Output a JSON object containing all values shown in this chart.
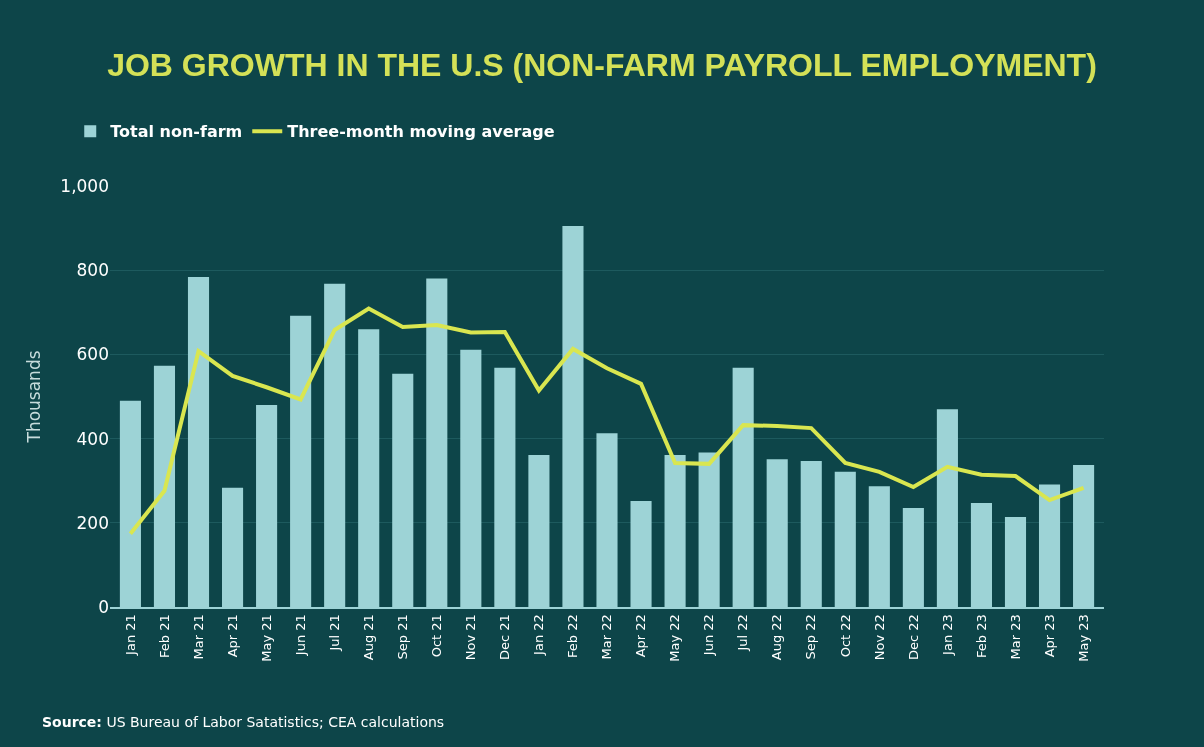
{
  "chart_data": {
    "type": "bar",
    "title": "JOB GROWTH IN THE U.S (NON-FARM PAYROLL EMPLOYMENT)",
    "ylabel": "Thousands",
    "categories": [
      "Jan 21",
      "Feb 21",
      "Mar 21",
      "Apr 21",
      "May 21",
      "Jun 21",
      "Jul 21",
      "Aug 21",
      "Sep 21",
      "Oct 21",
      "Nov 21",
      "Dec 21",
      "Jan 22",
      "Feb 22",
      "Mar 22",
      "Apr 22",
      "May 22",
      "Jun 22",
      "Jul 22",
      "Aug 22",
      "Sep 22",
      "Oct 22",
      "Nov 22",
      "Dec 22",
      "Jan 23",
      "Feb 23",
      "Mar 23",
      "Apr 23",
      "May 23"
    ],
    "series": [
      {
        "name": "Total non-farm",
        "color": "#9dd3d6",
        "values": [
          490,
          573,
          784,
          283,
          480,
          692,
          768,
          660,
          554,
          780,
          611,
          568,
          361,
          905,
          413,
          252,
          361,
          367,
          568,
          351,
          347,
          321,
          287,
          235,
          470,
          247,
          214,
          291,
          337
        ]
      },
      {
        "name": "Three-month moving average",
        "type": "line",
        "color": "#d9e650",
        "values": [
          174,
          276,
          608,
          549,
          522,
          493,
          658,
          709,
          665,
          670,
          652,
          653,
          514,
          613,
          567,
          530,
          342,
          340,
          432,
          430,
          425,
          342,
          321,
          285,
          333,
          314,
          311,
          254,
          283
        ]
      }
    ],
    "ylim": [
      0,
      1000
    ],
    "yticks": [
      0,
      200,
      400,
      600,
      800,
      {
        "value": 1000,
        "label": "1,000"
      }
    ],
    "grid": "y",
    "legend": "top left",
    "annotations": [
      "Source: US Bureau of Labor Satatistics; CEA calculations"
    ]
  }
}
